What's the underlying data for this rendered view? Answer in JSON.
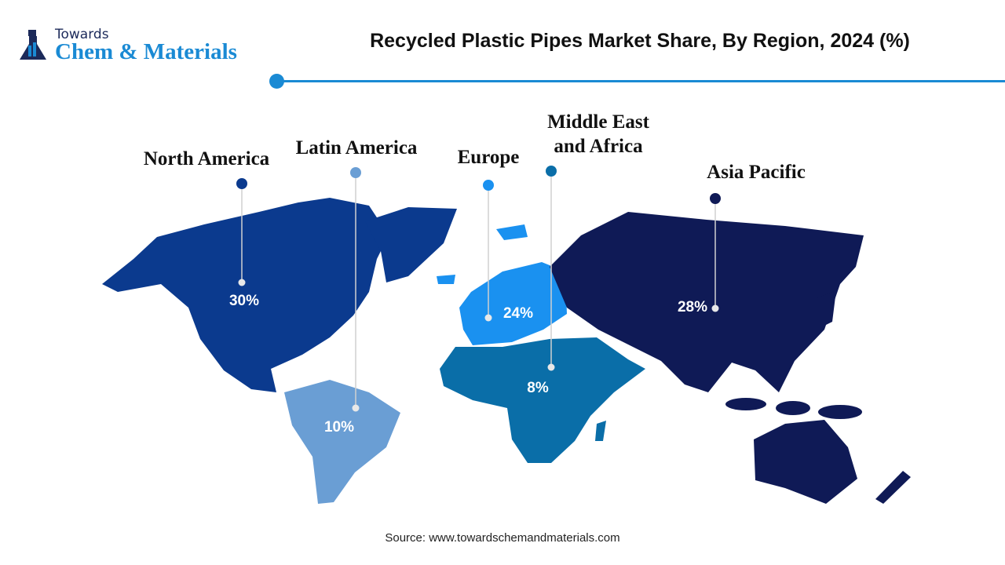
{
  "logo": {
    "line1": "Towards",
    "line2": "Chem & Materials"
  },
  "title": "Recycled Plastic Pipes Market Share, By Region, 2024 (%)",
  "regions": [
    {
      "name": "North America",
      "value": "30%",
      "color": "#0b3a8e"
    },
    {
      "name": "Latin America",
      "value": "10%",
      "color": "#6a9ed4"
    },
    {
      "name": "Europe",
      "value": "24%",
      "color": "#1a91f0"
    },
    {
      "name_line1": "Middle East",
      "name_line2": "and Africa",
      "value": "8%",
      "color": "#0a6ea8"
    },
    {
      "name": "Asia Pacific",
      "value": "28%",
      "color": "#0f1a56"
    }
  ],
  "source": "Source: www.towardschemandmaterials.com"
}
